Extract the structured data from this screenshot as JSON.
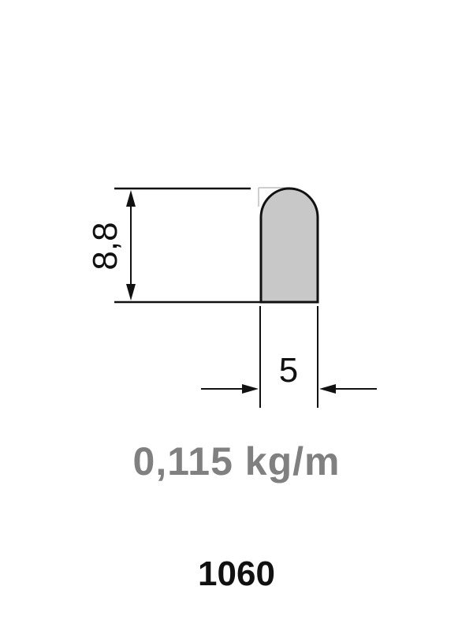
{
  "dimensions": {
    "height": "8,8",
    "width": "5"
  },
  "weight": "0,115 kg/m",
  "part_number": "1060",
  "colors": {
    "line": "#111111",
    "profile_fill": "#c8c8c8",
    "weight_text": "#808080"
  }
}
